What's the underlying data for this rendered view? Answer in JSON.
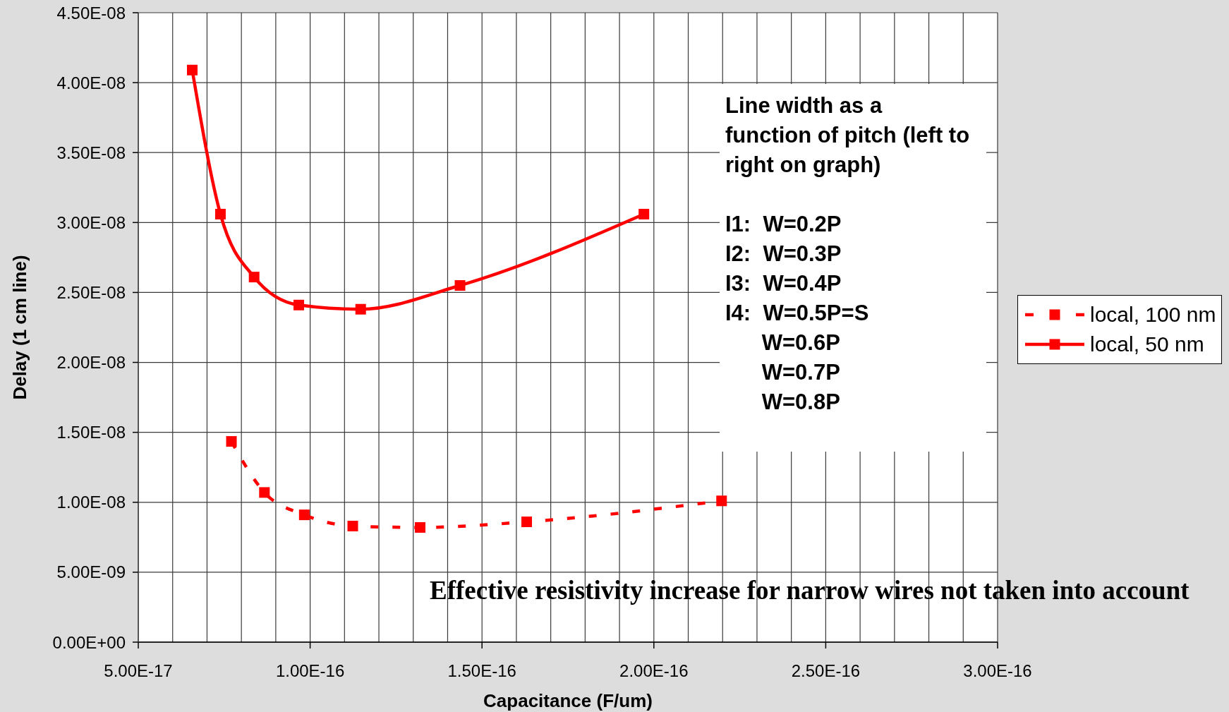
{
  "chart_data": {
    "type": "line",
    "xlabel": "Capacitance (F/um)",
    "ylabel": "Delay (1 cm line)",
    "xlim": [
      5e-17,
      3e-16
    ],
    "xticks": [
      {
        "value": 5e-17,
        "label": "5.00E-17"
      },
      {
        "value": 6e-17,
        "label": null
      },
      {
        "value": 7e-17,
        "label": null
      },
      {
        "value": 8e-17,
        "label": null
      },
      {
        "value": 9e-17,
        "label": null
      },
      {
        "value": 1e-16,
        "label": "1.00E-16"
      },
      {
        "value": 1.1e-16,
        "label": null
      },
      {
        "value": 1.2e-16,
        "label": null
      },
      {
        "value": 1.3e-16,
        "label": null
      },
      {
        "value": 1.4e-16,
        "label": null
      },
      {
        "value": 1.5e-16,
        "label": "1.50E-16"
      },
      {
        "value": 1.6e-16,
        "label": null
      },
      {
        "value": 1.7e-16,
        "label": null
      },
      {
        "value": 1.8e-16,
        "label": null
      },
      {
        "value": 1.9e-16,
        "label": null
      },
      {
        "value": 2e-16,
        "label": "2.00E-16"
      },
      {
        "value": 2.1e-16,
        "label": null
      },
      {
        "value": 2.2e-16,
        "label": null
      },
      {
        "value": 2.3e-16,
        "label": null
      },
      {
        "value": 2.4e-16,
        "label": null
      },
      {
        "value": 2.5e-16,
        "label": "2.50E-16"
      },
      {
        "value": 2.6e-16,
        "label": null
      },
      {
        "value": 2.7e-16,
        "label": null
      },
      {
        "value": 2.8e-16,
        "label": null
      },
      {
        "value": 2.9e-16,
        "label": null
      },
      {
        "value": 3e-16,
        "label": "3.00E-16"
      }
    ],
    "ylim": [
      0,
      4.5e-08
    ],
    "yticks": [
      {
        "value": 0,
        "label": "0.00E+00"
      },
      {
        "value": 5e-09,
        "label": "5.00E-09"
      },
      {
        "value": 1e-08,
        "label": "1.00E-08"
      },
      {
        "value": 1.5e-08,
        "label": "1.50E-08"
      },
      {
        "value": 2e-08,
        "label": "2.00E-08"
      },
      {
        "value": 2.5e-08,
        "label": "2.50E-08"
      },
      {
        "value": 3e-08,
        "label": "3.00E-08"
      },
      {
        "value": 3.5e-08,
        "label": "3.50E-08"
      },
      {
        "value": 4e-08,
        "label": "4.00E-08"
      },
      {
        "value": 4.5e-08,
        "label": "4.50E-08"
      }
    ],
    "grid": true,
    "legend": "right",
    "marker": "square",
    "series": [
      {
        "name": "local, 100 nm",
        "color": "#ff0000",
        "line_style": "dashed",
        "x": [
          7.71e-17,
          8.67e-17,
          9.83e-17,
          1.124e-16,
          1.32e-16,
          1.63e-16,
          2.197e-16
        ],
        "values": [
          1.435e-08,
          1.07e-08,
          9.1e-09,
          8.3e-09,
          8.2e-09,
          8.6e-09,
          1.01e-08
        ]
      },
      {
        "name": "local, 50 nm",
        "color": "#ff0000",
        "line_style": "solid",
        "x": [
          6.57e-17,
          7.39e-17,
          8.37e-17,
          9.67e-17,
          1.147e-16,
          1.436e-16,
          1.971e-16
        ],
        "values": [
          4.09e-08,
          3.06e-08,
          2.61e-08,
          2.41e-08,
          2.38e-08,
          2.55e-08,
          3.06e-08
        ]
      }
    ],
    "annotations": [
      "Line width as a\nfunction of pitch (left to\nright on graph)\n\nI1:  W=0.2P\nI2:  W=0.3P\nI3:  W=0.4P\nI4:  W=0.5P=S\n      W=0.6P\n      W=0.7P\n      W=0.8P",
      "Effective resistivity increase for narrow wires not taken into account"
    ]
  }
}
